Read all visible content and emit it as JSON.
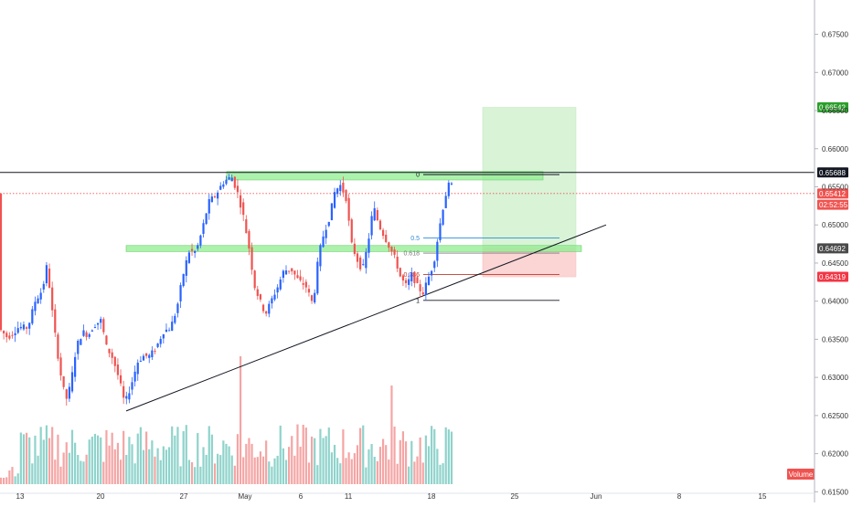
{
  "chart_data": {
    "type": "candlestick",
    "ylim": [
      0.6148,
      0.6795
    ],
    "y_ticks": [
      "0.67500",
      "0.67000",
      "0.66500",
      "0.66000",
      "0.65500",
      "0.65000",
      "0.64500",
      "0.64000",
      "0.63500",
      "0.63000",
      "0.62500",
      "0.62000",
      "0.61500"
    ],
    "x_ticks": [
      "13",
      "20",
      "27",
      "May",
      "6",
      "11",
      "18",
      "25",
      "Jun",
      "8",
      "15"
    ],
    "price_badges": [
      {
        "label": "0.66542",
        "value": 0.66542,
        "color": "#2ba02b"
      },
      {
        "label": "0.65688",
        "value": 0.65688,
        "color": "#131722"
      },
      {
        "label": "0.65412",
        "value": 0.65412,
        "color": "#ef5350"
      },
      {
        "label": "02:52:55",
        "value": 0.65265,
        "color": "#ef5350"
      },
      {
        "label": "0.64692",
        "value": 0.64692,
        "color": "#4a4a4a"
      },
      {
        "label": "0.64319",
        "value": 0.64319,
        "color": "#f23645"
      }
    ],
    "volume_label": "Volume",
    "fib_levels": [
      {
        "label": "0",
        "value": 0.6566
      },
      {
        "label": "0.5",
        "value": 0.6483
      },
      {
        "label": "0.618",
        "value": 0.6463
      },
      {
        "label": "0.786",
        "value": 0.6435
      },
      {
        "label": "1",
        "value": 0.6401
      }
    ],
    "support_zones": [
      {
        "from": 0.6559,
        "to": 0.657
      },
      {
        "from": 0.6465,
        "to": 0.6473
      }
    ],
    "position": {
      "entry": 0.64692,
      "target": 0.66542,
      "stop": 0.64319
    },
    "horizontal_line": 0.65688,
    "current_price": 0.65412,
    "trendline": {
      "from_price": 0.6256,
      "to_price": 0.65
    },
    "colors": {
      "up": "#26a69a",
      "down": "#ef5350",
      "up_volume": "#8fd3cb",
      "down_volume": "#f4a5a4",
      "accent": "#2962ff",
      "zone": "#90ee90",
      "profit": "#d8f3d6",
      "loss": "#fbd4d4"
    }
  }
}
